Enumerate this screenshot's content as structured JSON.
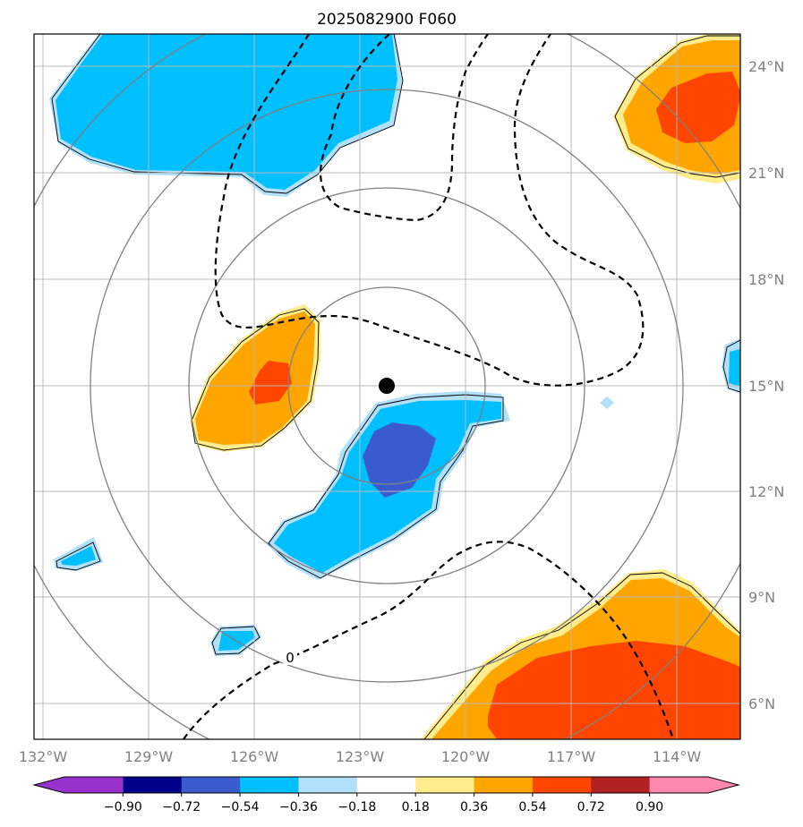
{
  "title": "2025082900 F060",
  "map": {
    "lon_labels": [
      "132°W",
      "129°W",
      "126°W",
      "123°W",
      "120°W",
      "117°W",
      "114°W"
    ],
    "lat_labels": [
      "24°N",
      "21°N",
      "18°N",
      "15°N",
      "12°N",
      "9°N",
      "6°N"
    ],
    "extent": {
      "lon_min": -132.3,
      "lon_max": -112.2,
      "lat_min": 5.0,
      "lat_max": 25.0
    },
    "center": {
      "lon": -122.3,
      "lat": 15.0
    },
    "range_rings_deg": [
      2.8,
      5.6,
      8.4,
      11.2
    ],
    "contour_label": "0"
  },
  "colorbar": {
    "tick_labels": [
      "−0.90",
      "−0.72",
      "−0.54",
      "−0.36",
      "−0.18",
      "0.18",
      "0.36",
      "0.54",
      "0.72",
      "0.90"
    ],
    "colors": [
      "#9932cc",
      "#00008b",
      "#3a5bcd",
      "#00bfff",
      "#b0e0fa",
      "#ffffff",
      "#ffec8b",
      "#ffa500",
      "#ff4500",
      "#b22222",
      "#ff88b0"
    ],
    "under_color": "#9932cc",
    "over_color": "#ff88b0"
  }
}
